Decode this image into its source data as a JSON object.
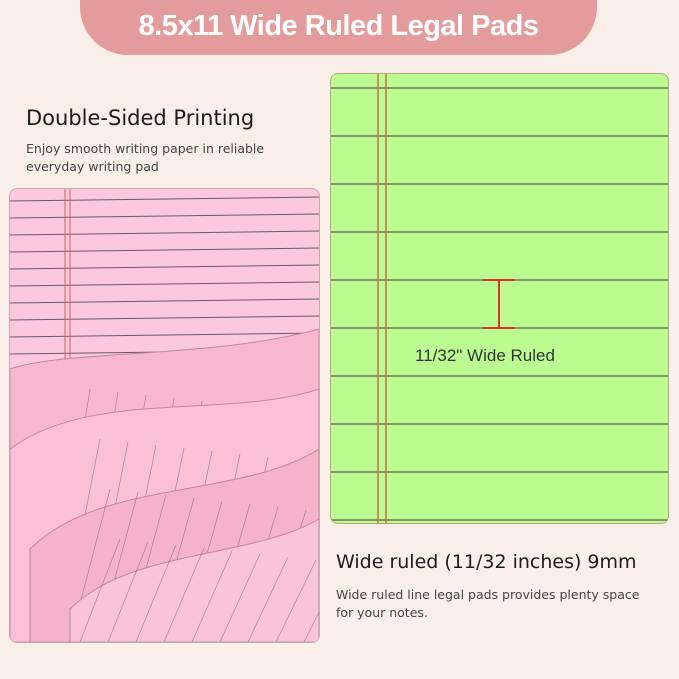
{
  "banner": {
    "title": "8.5x11 Wide Ruled Legal Pads",
    "color": "#e39c9b"
  },
  "left": {
    "heading": "Double-Sided Printing",
    "description": "Enjoy smooth writing paper in reliable everyday writing pad",
    "pad_color": "#fbc8de"
  },
  "right": {
    "pad_color": "#bbfd93",
    "ruling_label": "11/32\" Wide Ruled",
    "heading": "Wide ruled (11/32 inches) 9mm",
    "description": "Wide ruled line legal pads provides plenty space for your notes."
  }
}
